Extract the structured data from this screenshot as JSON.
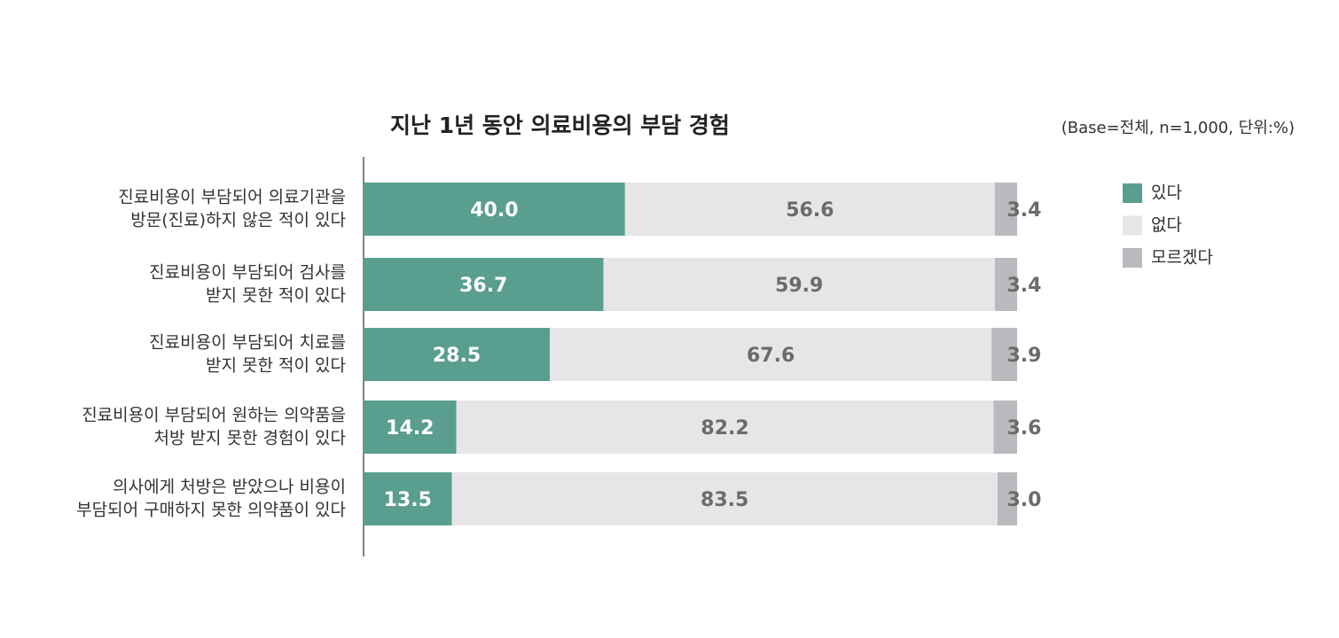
{
  "chart_data": {
    "type": "stacked-bar-horizontal",
    "title": "지난 1년 동안 의료비용의 부담 경험",
    "subtitle": "(Base=전체, n=1,000, 단위:%)",
    "categories": [
      [
        "진료비용이 부담되어 의료기관을",
        "방문(진료)하지 않은 적이 있다"
      ],
      [
        "진료비용이 부담되어 검사를",
        "받지 못한 적이 있다"
      ],
      [
        "진료비용이 부담되어 치료를",
        "받지 못한 적이 있다"
      ],
      [
        "진료비용이 부담되어 원하는 의약품을",
        "처방 받지 못한 경험이 있다"
      ],
      [
        "의사에게 처방은 받았으나 비용이",
        "부담되어 구매하지 못한 의약품이 있다"
      ]
    ],
    "series": [
      {
        "name": "있다",
        "color": "#5a9e8f",
        "label_color": "#ffffff",
        "values": [
          40.0,
          36.7,
          28.5,
          14.2,
          13.5
        ],
        "value_labels": [
          "40.0",
          "36.7",
          "28.5",
          "14.2",
          "13.5"
        ]
      },
      {
        "name": "없다",
        "color": "#e6e6e8",
        "label_color": "#6b6b6b",
        "values": [
          56.6,
          59.9,
          67.6,
          82.2,
          83.5
        ],
        "value_labels": [
          "56.6",
          "59.9",
          "67.6",
          "82.2",
          "83.5"
        ]
      },
      {
        "name": "모르겠다",
        "color": "#b9babe",
        "label_color": "#6b6b6b",
        "values": [
          3.4,
          3.4,
          3.9,
          3.6,
          3.0
        ],
        "value_labels": [
          "3.4",
          "3.4",
          "3.9",
          "3.6",
          "3.0"
        ]
      }
    ],
    "xlim": [
      0,
      100
    ]
  }
}
